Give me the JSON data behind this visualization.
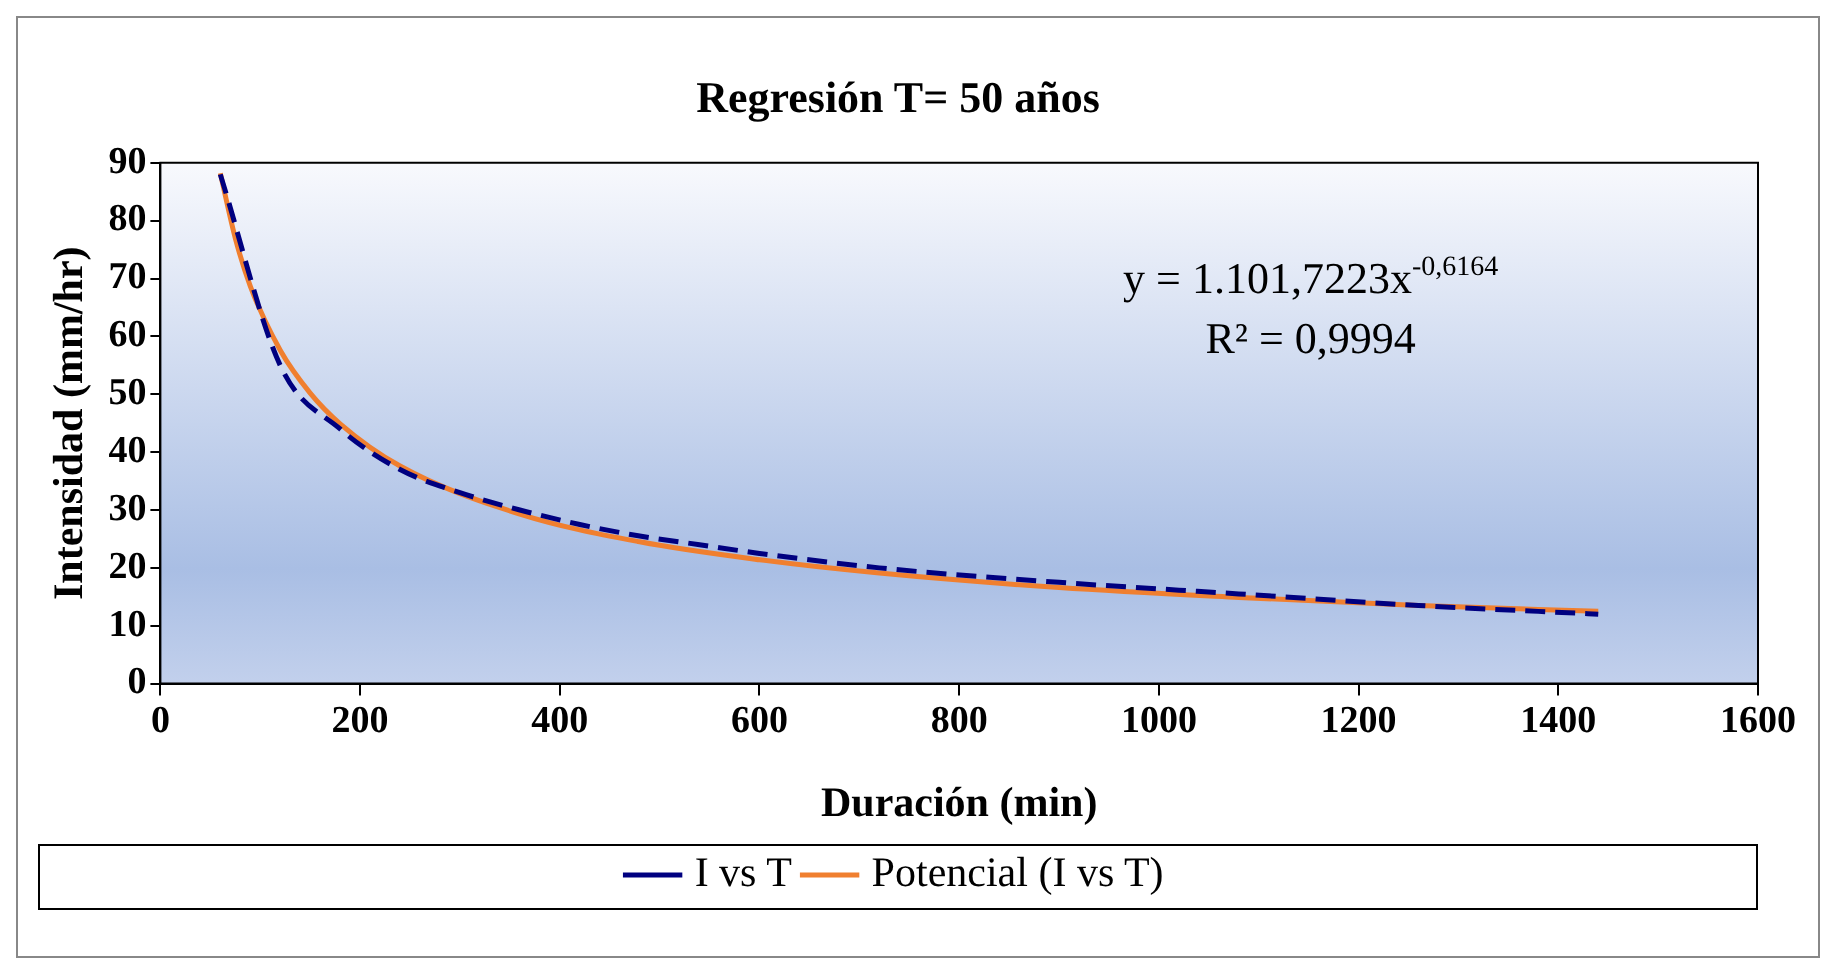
{
  "chart_data": {
    "type": "line",
    "title": "Regresión T= 50 años",
    "xlabel": "Duración (min)",
    "ylabel": "Intensidad (mm/hr)",
    "annotations": [
      "y = 1.101,7223x$^{-0,6164}$",
      "R² = 0,9994"
    ],
    "xlim": [
      0,
      1600
    ],
    "xticks": [
      0,
      200,
      400,
      600,
      800,
      1000,
      1200,
      1400,
      1600
    ],
    "ylim": [
      0,
      90
    ],
    "yticks": [
      0,
      10,
      20,
      30,
      40,
      50,
      60,
      70,
      80,
      90
    ],
    "legend": "bottom",
    "marker": "none",
    "series": [
      {
        "name": "I vs T",
        "color": "#000080",
        "line_style": "dashed",
        "x": [
          60,
          120,
          180,
          240,
          300,
          360,
          420,
          480,
          540,
          600,
          720,
          900,
          1080,
          1260,
          1440
        ],
        "values": [
          88,
          55,
          44,
          37,
          33,
          30,
          27.5,
          25.5,
          24,
          22.5,
          20,
          17.5,
          15.5,
          13.5,
          12
        ]
      },
      {
        "name": "Potencial (I vs T)",
        "color": "#f07f2f",
        "line_style": "solid",
        "x": [
          60,
          75,
          90,
          120,
          150,
          180,
          240,
          360,
          480,
          600,
          720,
          900,
          1080,
          1260,
          1440
        ],
        "values": [
          88.2,
          77.0,
          68.7,
          57.6,
          50.2,
          44.9,
          37.6,
          29.3,
          24.5,
          21.4,
          19.1,
          16.6,
          14.9,
          13.5,
          12.5
        ]
      }
    ]
  }
}
